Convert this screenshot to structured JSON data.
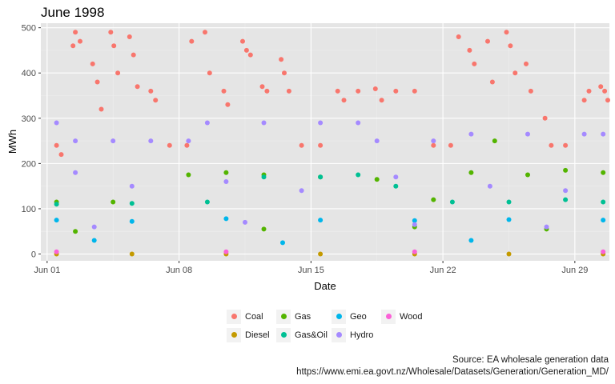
{
  "chart_data": {
    "type": "scatter",
    "title": "June 1998",
    "xlabel": "Date",
    "ylabel": "MWh",
    "xlim": [
      "1998-05-31T16:00",
      "1998-06-30T20:00"
    ],
    "ylim": [
      -15,
      510
    ],
    "x_ticks": [
      {
        "date": "1998-06-01",
        "label": "Jun 01"
      },
      {
        "date": "1998-06-08",
        "label": "Jun 08"
      },
      {
        "date": "1998-06-15",
        "label": "Jun 15"
      },
      {
        "date": "1998-06-22",
        "label": "Jun 22"
      },
      {
        "date": "1998-06-29",
        "label": "Jun 29"
      }
    ],
    "y_ticks": [
      0,
      100,
      200,
      300,
      400,
      500
    ],
    "grid": true,
    "legend_position": "bottom",
    "series": [
      {
        "name": "Coal",
        "color": "#F8766D",
        "points": [
          [
            "1998-06-01T12:00",
            240
          ],
          [
            "1998-06-01T18:00",
            220
          ],
          [
            "1998-06-02T09:00",
            460
          ],
          [
            "1998-06-02T12:00",
            490
          ],
          [
            "1998-06-02T18:00",
            470
          ],
          [
            "1998-06-03T10:00",
            420
          ],
          [
            "1998-06-03T16:00",
            380
          ],
          [
            "1998-06-03T21:00",
            320
          ],
          [
            "1998-06-04T09:00",
            490
          ],
          [
            "1998-06-04T13:00",
            460
          ],
          [
            "1998-06-04T18:00",
            400
          ],
          [
            "1998-06-05T09:00",
            480
          ],
          [
            "1998-06-05T14:00",
            440
          ],
          [
            "1998-06-05T19:00",
            370
          ],
          [
            "1998-06-06T12:00",
            360
          ],
          [
            "1998-06-06T18:00",
            340
          ],
          [
            "1998-06-07T12:00",
            240
          ],
          [
            "1998-06-08T10:00",
            240
          ],
          [
            "1998-06-08T16:00",
            470
          ],
          [
            "1998-06-09T09:00",
            490
          ],
          [
            "1998-06-09T15:00",
            400
          ],
          [
            "1998-06-10T09:00",
            360
          ],
          [
            "1998-06-10T14:00",
            330
          ],
          [
            "1998-06-11T09:00",
            470
          ],
          [
            "1998-06-11T14:00",
            450
          ],
          [
            "1998-06-11T19:00",
            440
          ],
          [
            "1998-06-12T10:00",
            370
          ],
          [
            "1998-06-12T16:00",
            360
          ],
          [
            "1998-06-13T10:00",
            430
          ],
          [
            "1998-06-13T14:00",
            400
          ],
          [
            "1998-06-13T20:00",
            360
          ],
          [
            "1998-06-14T12:00",
            240
          ],
          [
            "1998-06-15T12:00",
            240
          ],
          [
            "1998-06-16T10:00",
            360
          ],
          [
            "1998-06-16T18:00",
            340
          ],
          [
            "1998-06-17T12:00",
            360
          ],
          [
            "1998-06-18T10:00",
            365
          ],
          [
            "1998-06-18T18:00",
            340
          ],
          [
            "1998-06-19T12:00",
            360
          ],
          [
            "1998-06-20T12:00",
            360
          ],
          [
            "1998-06-21T12:00",
            240
          ],
          [
            "1998-06-22T10:00",
            240
          ],
          [
            "1998-06-22T20:00",
            480
          ],
          [
            "1998-06-23T10:00",
            450
          ],
          [
            "1998-06-23T16:00",
            420
          ],
          [
            "1998-06-24T09:00",
            470
          ],
          [
            "1998-06-24T15:00",
            380
          ],
          [
            "1998-06-25T09:00",
            490
          ],
          [
            "1998-06-25T14:00",
            460
          ],
          [
            "1998-06-25T20:00",
            400
          ],
          [
            "1998-06-26T10:00",
            420
          ],
          [
            "1998-06-26T16:00",
            360
          ],
          [
            "1998-06-27T10:00",
            300
          ],
          [
            "1998-06-27T18:00",
            240
          ],
          [
            "1998-06-28T12:00",
            240
          ],
          [
            "1998-06-29T12:00",
            340
          ],
          [
            "1998-06-29T18:00",
            360
          ],
          [
            "1998-06-30T09:00",
            370
          ],
          [
            "1998-06-30T14:00",
            360
          ],
          [
            "1998-06-30T18:00",
            340
          ]
        ]
      },
      {
        "name": "Diesel",
        "color": "#C49A00",
        "points": [
          [
            "1998-06-01T12:00",
            0
          ],
          [
            "1998-06-05T12:00",
            0
          ],
          [
            "1998-06-10T12:00",
            0
          ],
          [
            "1998-06-15T12:00",
            0
          ],
          [
            "1998-06-20T12:00",
            0
          ],
          [
            "1998-06-25T12:00",
            0
          ],
          [
            "1998-06-30T12:00",
            0
          ]
        ]
      },
      {
        "name": "Gas",
        "color": "#53B400",
        "points": [
          [
            "1998-06-01T12:00",
            115
          ],
          [
            "1998-06-04T12:00",
            115
          ],
          [
            "1998-06-08T12:00",
            175
          ],
          [
            "1998-06-10T12:00",
            180
          ],
          [
            "1998-06-12T12:00",
            175
          ],
          [
            "1998-06-15T12:00",
            170
          ],
          [
            "1998-06-18T12:00",
            165
          ],
          [
            "1998-06-21T12:00",
            120
          ],
          [
            "1998-06-23T12:00",
            180
          ],
          [
            "1998-06-24T18:00",
            250
          ],
          [
            "1998-06-26T12:00",
            175
          ],
          [
            "1998-06-28T12:00",
            185
          ],
          [
            "1998-06-30T12:00",
            180
          ],
          [
            "1998-06-02T12:00",
            50
          ],
          [
            "1998-06-12T12:00",
            55
          ],
          [
            "1998-06-20T12:00",
            60
          ],
          [
            "1998-06-27T12:00",
            55
          ]
        ]
      },
      {
        "name": "Gas&Oil",
        "color": "#00C094",
        "points": [
          [
            "1998-06-01T12:00",
            110
          ],
          [
            "1998-06-05T12:00",
            112
          ],
          [
            "1998-06-09T12:00",
            115
          ],
          [
            "1998-06-12T12:00",
            170
          ],
          [
            "1998-06-15T12:00",
            170
          ],
          [
            "1998-06-17T12:00",
            175
          ],
          [
            "1998-06-19T12:00",
            150
          ],
          [
            "1998-06-22T12:00",
            115
          ],
          [
            "1998-06-25T12:00",
            115
          ],
          [
            "1998-06-28T12:00",
            120
          ],
          [
            "1998-06-30T12:00",
            115
          ]
        ]
      },
      {
        "name": "Geo",
        "color": "#00B6EB",
        "points": [
          [
            "1998-06-01T12:00",
            75
          ],
          [
            "1998-06-05T12:00",
            72
          ],
          [
            "1998-06-10T12:00",
            78
          ],
          [
            "1998-06-15T12:00",
            75
          ],
          [
            "1998-06-20T12:00",
            74
          ],
          [
            "1998-06-25T12:00",
            76
          ],
          [
            "1998-06-30T12:00",
            75
          ],
          [
            "1998-06-03T12:00",
            30
          ],
          [
            "1998-06-13T12:00",
            25
          ],
          [
            "1998-06-23T12:00",
            30
          ]
        ]
      },
      {
        "name": "Hydro",
        "color": "#A58AFF",
        "points": [
          [
            "1998-06-01T12:00",
            290
          ],
          [
            "1998-06-02T12:00",
            250
          ],
          [
            "1998-06-04T12:00",
            250
          ],
          [
            "1998-06-06T12:00",
            250
          ],
          [
            "1998-06-08T12:00",
            250
          ],
          [
            "1998-06-09T12:00",
            290
          ],
          [
            "1998-06-12T12:00",
            290
          ],
          [
            "1998-06-15T12:00",
            290
          ],
          [
            "1998-06-17T12:00",
            290
          ],
          [
            "1998-06-18T12:00",
            250
          ],
          [
            "1998-06-21T12:00",
            250
          ],
          [
            "1998-06-23T12:00",
            265
          ],
          [
            "1998-06-26T12:00",
            265
          ],
          [
            "1998-06-29T12:00",
            265
          ],
          [
            "1998-06-30T12:00",
            265
          ],
          [
            "1998-06-02T12:00",
            180
          ],
          [
            "1998-06-05T12:00",
            150
          ],
          [
            "1998-06-10T12:00",
            160
          ],
          [
            "1998-06-14T12:00",
            140
          ],
          [
            "1998-06-19T12:00",
            170
          ],
          [
            "1998-06-24T12:00",
            150
          ],
          [
            "1998-06-28T12:00",
            140
          ],
          [
            "1998-06-03T12:00",
            60
          ],
          [
            "1998-06-11T12:00",
            70
          ],
          [
            "1998-06-20T12:00",
            65
          ],
          [
            "1998-06-27T12:00",
            60
          ]
        ]
      },
      {
        "name": "Wood",
        "color": "#FB61D7",
        "points": [
          [
            "1998-06-01T12:00",
            5
          ],
          [
            "1998-06-10T12:00",
            5
          ],
          [
            "1998-06-20T12:00",
            5
          ],
          [
            "1998-06-30T12:00",
            5
          ]
        ]
      }
    ]
  },
  "legend": {
    "items": [
      {
        "name": "Coal",
        "color": "#F8766D"
      },
      {
        "name": "Gas",
        "color": "#53B400"
      },
      {
        "name": "Geo",
        "color": "#00B6EB"
      },
      {
        "name": "Wood",
        "color": "#FB61D7"
      },
      {
        "name": "Diesel",
        "color": "#C49A00"
      },
      {
        "name": "Gas&Oil",
        "color": "#00C094"
      },
      {
        "name": "Hydro",
        "color": "#A58AFF"
      }
    ]
  },
  "caption": {
    "line1": "Source: EA wholesale generation data",
    "line2": "https://www.emi.ea.govt.nz/Wholesale/Datasets/Generation/Generation_MD/"
  }
}
